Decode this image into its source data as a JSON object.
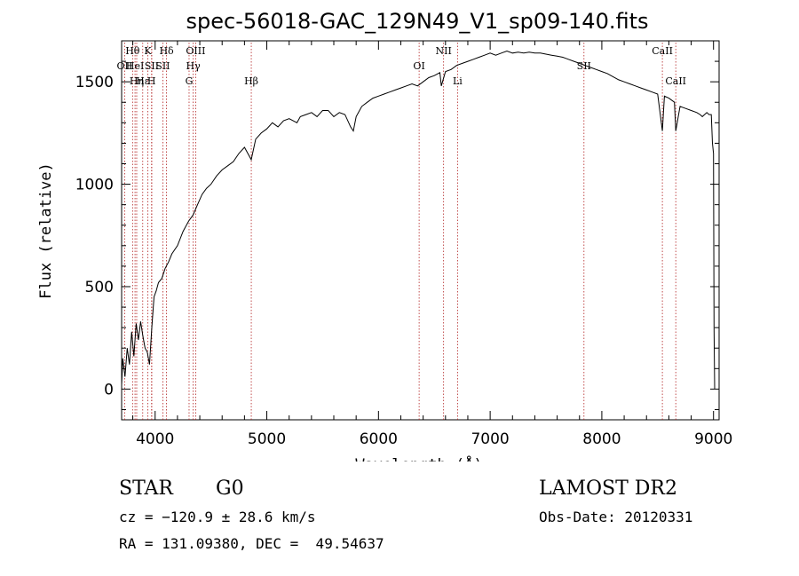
{
  "chart_data": {
    "type": "line",
    "title": "spec-56018-GAC_129N49_V1_sp09-140.fits",
    "xlabel": "Wavelength (Å)",
    "ylabel": "Flux (relative)",
    "xlim": [
      3700,
      9050
    ],
    "ylim": [
      -150,
      1700
    ],
    "x_ticks": [
      4000,
      5000,
      6000,
      7000,
      8000,
      9000
    ],
    "y_ticks": [
      0,
      500,
      1000,
      1500
    ],
    "grid": false,
    "series": [
      {
        "x": [
          3700,
          3710,
          3730,
          3750,
          3770,
          3790,
          3810,
          3830,
          3850,
          3870,
          3890,
          3910,
          3930,
          3950,
          3970,
          3990,
          4010,
          4030,
          4060,
          4090,
          4120,
          4150,
          4200,
          4250,
          4300,
          4340,
          4380,
          4420,
          4460,
          4500,
          4550,
          4600,
          4650,
          4700,
          4750,
          4800,
          4861,
          4900,
          4950,
          5000,
          5050,
          5100,
          5150,
          5200,
          5270,
          5300,
          5350,
          5400,
          5450,
          5500,
          5550,
          5600,
          5650,
          5700,
          5750,
          5775,
          5800,
          5850,
          5900,
          5950,
          6000,
          6050,
          6100,
          6150,
          6200,
          6250,
          6300,
          6350,
          6400,
          6450,
          6500,
          6550,
          6563,
          6600,
          6650,
          6700,
          6750,
          6800,
          6850,
          6900,
          6950,
          7000,
          7050,
          7100,
          7150,
          7200,
          7250,
          7300,
          7350,
          7400,
          7450,
          7500,
          7550,
          7600,
          7650,
          7700,
          7750,
          7800,
          7850,
          7900,
          7950,
          8000,
          8050,
          8100,
          8150,
          8200,
          8250,
          8300,
          8350,
          8400,
          8450,
          8500,
          8542,
          8560,
          8600,
          8650,
          8662,
          8700,
          8750,
          8800,
          8850,
          8880,
          8900,
          8920,
          8940,
          8960,
          8980,
          8990,
          9000,
          9005,
          9010
        ],
        "y": [
          20,
          150,
          60,
          200,
          120,
          280,
          160,
          320,
          240,
          330,
          260,
          200,
          180,
          120,
          300,
          450,
          480,
          520,
          540,
          590,
          620,
          660,
          700,
          770,
          820,
          850,
          900,
          950,
          980,
          1000,
          1040,
          1070,
          1090,
          1110,
          1150,
          1180,
          1120,
          1220,
          1250,
          1270,
          1300,
          1280,
          1310,
          1320,
          1300,
          1330,
          1340,
          1350,
          1330,
          1360,
          1360,
          1330,
          1350,
          1340,
          1280,
          1260,
          1330,
          1380,
          1400,
          1420,
          1430,
          1440,
          1450,
          1460,
          1470,
          1480,
          1490,
          1480,
          1500,
          1520,
          1530,
          1545,
          1480,
          1550,
          1560,
          1580,
          1590,
          1600,
          1610,
          1620,
          1630,
          1640,
          1630,
          1640,
          1650,
          1640,
          1645,
          1640,
          1645,
          1640,
          1640,
          1635,
          1630,
          1625,
          1620,
          1610,
          1600,
          1590,
          1580,
          1570,
          1560,
          1550,
          1540,
          1525,
          1510,
          1500,
          1490,
          1480,
          1470,
          1460,
          1450,
          1440,
          1260,
          1430,
          1420,
          1400,
          1260,
          1380,
          1370,
          1360,
          1350,
          1340,
          1330,
          1340,
          1350,
          1340,
          1340,
          1200,
          1150,
          300,
          0
        ]
      }
    ],
    "lines": [
      {
        "label": "Hθ",
        "x": 3798,
        "row": 1
      },
      {
        "label": "OII",
        "x": 3727,
        "row": 2
      },
      {
        "label": "HeI",
        "x": 3820,
        "row": 2
      },
      {
        "label": "Hη",
        "x": 3835,
        "row": 3
      },
      {
        "label": "Hε",
        "x": 3889,
        "row": 3
      },
      {
        "label": "K",
        "x": 3934,
        "row": 1
      },
      {
        "label": "SII",
        "x": 3970,
        "row": 2
      },
      {
        "label": "H",
        "x": 3968,
        "row": 3
      },
      {
        "label": "Hδ",
        "x": 4102,
        "row": 1
      },
      {
        "label": "SII",
        "x": 4069,
        "row": 2
      },
      {
        "label": "OIII",
        "x": 4363,
        "row": 1
      },
      {
        "label": "Hγ",
        "x": 4341,
        "row": 2
      },
      {
        "label": "G",
        "x": 4304,
        "row": 3
      },
      {
        "label": "Hβ",
        "x": 4861,
        "row": 3
      },
      {
        "label": "OI",
        "x": 6364,
        "row": 2
      },
      {
        "label": "NII",
        "x": 6583,
        "row": 1
      },
      {
        "label": "Li",
        "x": 6708,
        "row": 3
      },
      {
        "label": "SII",
        "x": 7840,
        "row": 2
      },
      {
        "label": "CaII",
        "x": 8542,
        "row": 1
      },
      {
        "label": "CaII",
        "x": 8662,
        "row": 3
      }
    ],
    "line_color": "#000000",
    "marker_color": "#b22222"
  },
  "info": {
    "class_label": "STAR",
    "subclass": "G0",
    "cz": "cz = −120.9 ± 28.6 km/s",
    "coords": "RA = 131.09380, DEC =  49.54637",
    "survey": "LAMOST DR2",
    "obs_date": "Obs-Date: 20120331"
  }
}
